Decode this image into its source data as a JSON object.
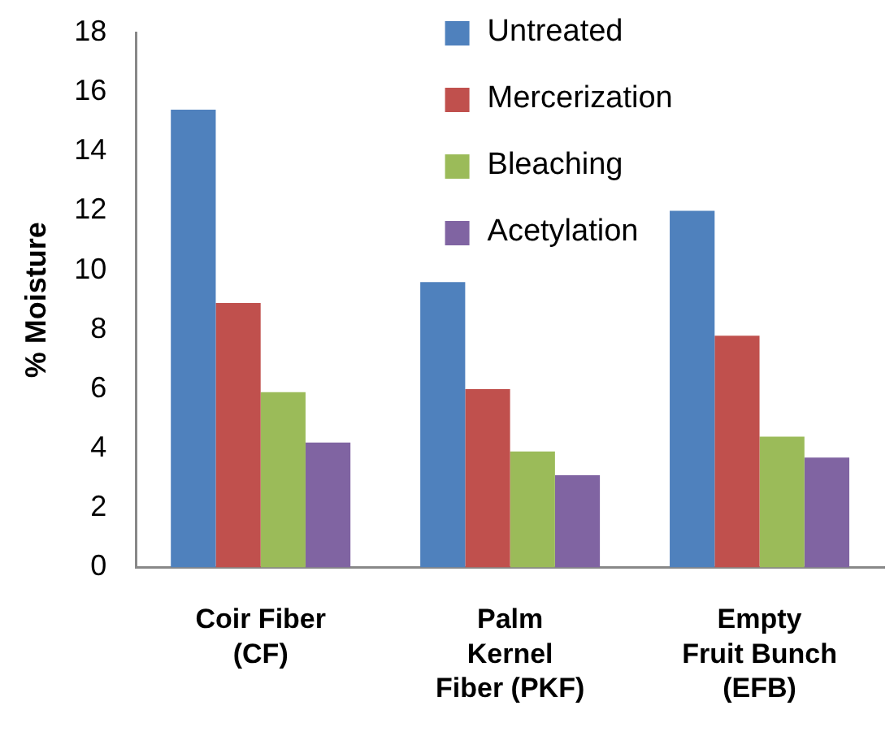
{
  "chart_data": {
    "type": "bar",
    "ylabel": "% Moisture",
    "categories": [
      "Coir Fiber\n(CF)",
      "Palm\nKernel\nFiber (PKF)",
      "Empty\nFruit Bunch\n(EFB)"
    ],
    "series": [
      {
        "name": "Untreated",
        "color": "#4f81bd",
        "values": [
          15.4,
          9.6,
          12.0
        ]
      },
      {
        "name": "Mercerization",
        "color": "#c0504d",
        "values": [
          8.9,
          6.0,
          7.8
        ]
      },
      {
        "name": "Bleaching",
        "color": "#9bbb59",
        "values": [
          5.9,
          3.9,
          4.4
        ]
      },
      {
        "name": "Acetylation",
        "color": "#8064a2",
        "values": [
          4.2,
          3.1,
          3.7
        ]
      }
    ],
    "ylim": [
      0,
      18
    ],
    "yticks": [
      0,
      2,
      4,
      6,
      8,
      10,
      12,
      14,
      16,
      18
    ],
    "grid": false,
    "legend": "top"
  }
}
